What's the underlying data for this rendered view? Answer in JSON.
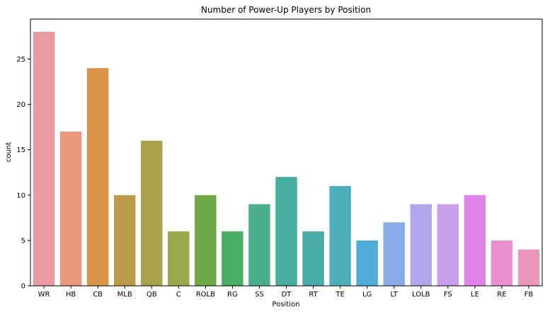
{
  "chart_data": {
    "type": "bar",
    "title": "Number of Power-Up Players by Position",
    "xlabel": "Position",
    "ylabel": "count",
    "categories": [
      "WR",
      "HB",
      "CB",
      "MLB",
      "QB",
      "C",
      "ROLB",
      "RG",
      "SS",
      "DT",
      "RT",
      "TE",
      "LG",
      "LT",
      "LOLB",
      "FS",
      "LE",
      "RE",
      "FB"
    ],
    "values": [
      28,
      17,
      24,
      10,
      16,
      6,
      10,
      6,
      9,
      12,
      6,
      11,
      5,
      7,
      9,
      9,
      10,
      5,
      4
    ],
    "colors": [
      "#ea9aa2",
      "#e9987b",
      "#d8954a",
      "#bc9b4b",
      "#a9a24d",
      "#97a94b",
      "#6ea846",
      "#49ad64",
      "#4aae8a",
      "#47ae9f",
      "#4aaaa8",
      "#4eadbd",
      "#50adda",
      "#88acea",
      "#b0a6ee",
      "#c99eec",
      "#e083e8",
      "#ea8fcf",
      "#ea96bb"
    ],
    "ylim": [
      0,
      29.4
    ],
    "yticks": [
      0,
      5,
      10,
      15,
      20,
      25
    ],
    "grid": false,
    "legend": "none"
  }
}
